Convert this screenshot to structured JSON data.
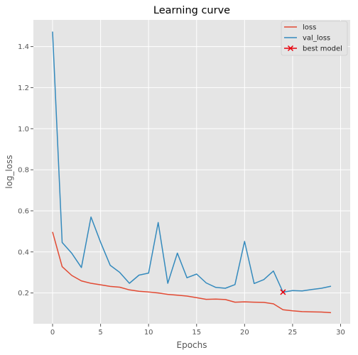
{
  "chart_data": {
    "type": "line",
    "title": "Learning curve",
    "xlabel": "Epochs",
    "ylabel": "log_loss",
    "xlim": [
      -2,
      31
    ],
    "ylim": [
      0.05,
      1.53
    ],
    "x_ticks": [
      0,
      5,
      10,
      15,
      20,
      25,
      30
    ],
    "y_ticks": [
      0.2,
      0.4,
      0.6,
      0.8,
      1.0,
      1.2,
      1.4
    ],
    "y_tick_labels": [
      "0.2",
      "0.4",
      "0.6",
      "0.8",
      "1.0",
      "1.2",
      "1.4"
    ],
    "grid": true,
    "legend_position": "top-right",
    "x": [
      0,
      1,
      2,
      3,
      4,
      5,
      6,
      7,
      8,
      9,
      10,
      11,
      12,
      13,
      14,
      15,
      16,
      17,
      18,
      19,
      20,
      21,
      22,
      23,
      24,
      25,
      26,
      27,
      28,
      29
    ],
    "series": [
      {
        "name": "loss",
        "color": "#e24a33",
        "values": [
          0.497,
          0.328,
          0.285,
          0.259,
          0.247,
          0.24,
          0.232,
          0.228,
          0.215,
          0.208,
          0.205,
          0.2,
          0.193,
          0.189,
          0.185,
          0.177,
          0.169,
          0.17,
          0.168,
          0.155,
          0.157,
          0.155,
          0.154,
          0.147,
          0.118,
          0.113,
          0.109,
          0.108,
          0.107,
          0.104
        ]
      },
      {
        "name": "val_loss",
        "color": "#348abd",
        "values": [
          1.473,
          0.446,
          0.393,
          0.324,
          0.57,
          0.447,
          0.335,
          0.3,
          0.247,
          0.287,
          0.297,
          0.543,
          0.247,
          0.394,
          0.274,
          0.292,
          0.249,
          0.227,
          0.223,
          0.241,
          0.451,
          0.246,
          0.265,
          0.307,
          0.204,
          0.212,
          0.21,
          0.217,
          0.223,
          0.233
        ]
      }
    ],
    "markers": [
      {
        "name": "best model",
        "color": "#e8000b",
        "x": 24,
        "y": 0.204,
        "symbol": "x"
      }
    ]
  }
}
